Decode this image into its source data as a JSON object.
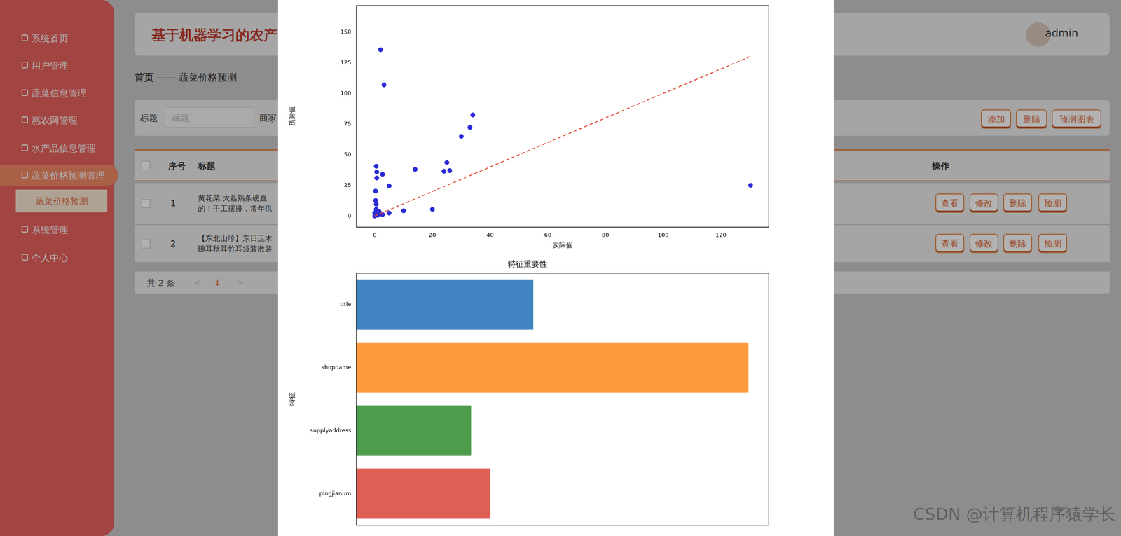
{
  "app": {
    "title": "基于机器学习的农产",
    "user": "admin",
    "menu": [
      {
        "label": "系统首页"
      },
      {
        "label": "用户管理"
      },
      {
        "label": "蔬菜信息管理"
      },
      {
        "label": "惠农网管理"
      },
      {
        "label": "水产品信息管理"
      },
      {
        "label": "蔬菜价格预测管理",
        "children": [
          "蔬菜价格预测"
        ]
      },
      {
        "label": "系统管理"
      },
      {
        "label": "个人中心"
      }
    ],
    "breadcrumb": {
      "home": "首页",
      "separator": "——",
      "current": "蔬菜价格预测"
    },
    "search": {
      "labels": [
        "标题",
        "商家"
      ],
      "placeholder": "标题"
    },
    "buttons": [
      "添加",
      "删除",
      "预测图表"
    ],
    "table": {
      "headers": [
        "序号",
        "标题",
        "操作"
      ],
      "rows": [
        {
          "index": 1,
          "title": [
            "黄花菜 大荔熟条硬直",
            "的！手工摆排，常年供"
          ]
        },
        {
          "index": 2,
          "title": [
            "【东北山珍】东日玉木",
            "碗耳秋耳竹耳袋装散装"
          ]
        }
      ],
      "actions": [
        "查看",
        "修改",
        "删除",
        "预测"
      ]
    },
    "pagination": {
      "total": "共 2 条",
      "prev": "<",
      "page": 1,
      "next": ">"
    }
  },
  "watermark": "CSDN @计算机程序猿学长",
  "chart_data": [
    {
      "type": "scatter",
      "x_label": "实际值",
      "y_label": "预测值",
      "xlim": [
        -6.5,
        136.5
      ],
      "xticks": [
        0,
        20,
        40,
        60,
        80,
        100,
        120
      ],
      "ylim": [
        -9,
        172
      ],
      "yticks": [
        0,
        25,
        50,
        75,
        100,
        125,
        150
      ],
      "grid": false,
      "points": {
        "color": "#2b2bd6",
        "marker": "circle",
        "x": [
          2,
          3.2,
          34,
          33,
          30,
          25,
          24,
          26,
          14,
          2.7,
          0.5,
          0.7,
          0.7,
          5,
          0.3,
          0.3,
          0.5,
          20,
          10,
          5,
          130.3,
          0,
          1,
          1.5,
          2.2,
          0.5,
          2.7,
          0
        ],
        "y": [
          135.7,
          107,
          82.5,
          72.3,
          65,
          43.6,
          36.5,
          37,
          38,
          34,
          40.6,
          35.9,
          31,
          24.5,
          20.3,
          12.6,
          9.6,
          5.4,
          4.2,
          2.4,
          25,
          2.4,
          0.6,
          3.6,
          1.8,
          5.4,
          1.2,
          0
        ]
      },
      "reference_line": {
        "x": [
          0,
          130
        ],
        "y": [
          0,
          130
        ],
        "color": "#e24a33",
        "line_style": "dashed"
      }
    },
    {
      "type": "bar",
      "orientation": "horizontal",
      "title": "特征重要性",
      "y_label": "特征",
      "categories": [
        "title",
        "shopname",
        "supplyaddress",
        "pingjianum"
      ],
      "values": [
        0.248,
        0.549,
        0.161,
        0.188
      ],
      "colors": [
        "#3f84c0",
        "#ff9a3c",
        "#4c9c4c",
        "#e05f55"
      ],
      "xlim": [
        0,
        0.577
      ],
      "grid": false,
      "tick_labels": "y"
    }
  ]
}
